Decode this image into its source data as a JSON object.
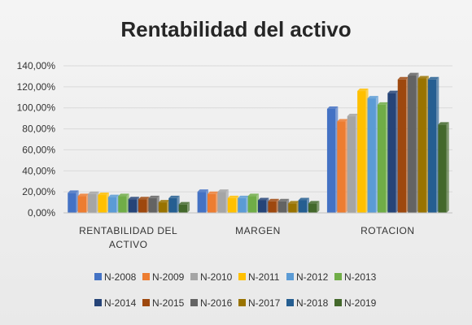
{
  "chart_data": {
    "type": "bar",
    "title": "Rentabilidad del activo",
    "categories": [
      "RENTABILIDAD DEL ACTIVO",
      "MARGEN",
      "ROTACION"
    ],
    "ylim": [
      0,
      140
    ],
    "yticks": [
      "0,00%",
      "20,00%",
      "40,00%",
      "60,00%",
      "80,00%",
      "100,00%",
      "120,00%",
      "140,00%"
    ],
    "grid": true,
    "legend_position": "bottom",
    "series": [
      {
        "name": "N-2008",
        "color": "#4472c4",
        "values": [
          19,
          20,
          99
        ]
      },
      {
        "name": "N-2009",
        "color": "#ed7d31",
        "values": [
          16,
          18,
          87
        ]
      },
      {
        "name": "N-2010",
        "color": "#a5a5a5",
        "values": [
          18,
          20,
          92
        ]
      },
      {
        "name": "N-2011",
        "color": "#ffc000",
        "values": [
          17,
          14,
          116
        ]
      },
      {
        "name": "N-2012",
        "color": "#5b9bd5",
        "values": [
          15,
          14,
          109
        ]
      },
      {
        "name": "N-2013",
        "color": "#70ad47",
        "values": [
          16,
          16,
          103
        ]
      },
      {
        "name": "N-2014",
        "color": "#264478",
        "values": [
          13,
          12,
          114
        ]
      },
      {
        "name": "N-2015",
        "color": "#9e480e",
        "values": [
          13,
          11,
          127
        ]
      },
      {
        "name": "N-2016",
        "color": "#636363",
        "values": [
          14,
          11,
          131
        ]
      },
      {
        "name": "N-2017",
        "color": "#997300",
        "values": [
          10,
          9,
          128
        ]
      },
      {
        "name": "N-2018",
        "color": "#255e91",
        "values": [
          14,
          12,
          127
        ]
      },
      {
        "name": "N-2019",
        "color": "#43682b",
        "values": [
          8,
          9,
          84
        ]
      }
    ]
  }
}
